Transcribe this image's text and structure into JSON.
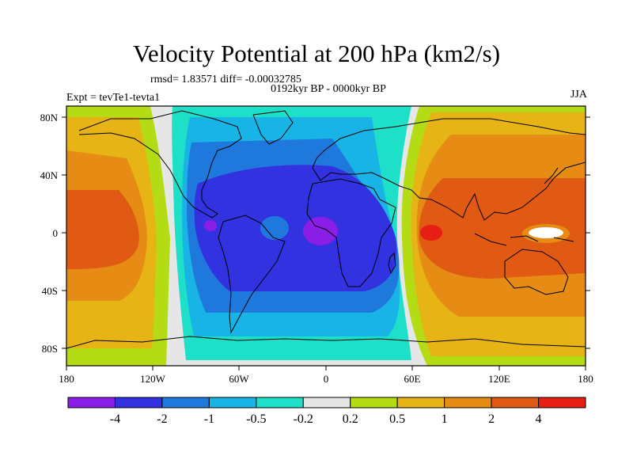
{
  "header": {
    "title": "Velocity Potential at 200 hPa (km2/s)",
    "rmsd": "rmsd= 1.83571 diff= -0.00032785",
    "period": "0192kyr BP - 0000kyr BP",
    "experiment": "Expt = tevTe1-tevta1",
    "season": "JJA"
  },
  "axes": {
    "lat_labels": [
      "80N",
      "40N",
      "0",
      "40S",
      "80S"
    ],
    "lon_labels": [
      "180",
      "120W",
      "60W",
      "0",
      "60E",
      "120E",
      "180"
    ]
  },
  "colorbar": {
    "colors": [
      "#8a1ee6",
      "#3232e0",
      "#1f78dc",
      "#18b4e6",
      "#1ee0c8",
      "#e6e6e6",
      "#b4dc14",
      "#e6b414",
      "#e68c14",
      "#e05a14",
      "#e61e14"
    ],
    "labels": [
      "-4",
      "-2",
      "-1",
      "-0.5",
      "-0.2",
      "0.2",
      "0.5",
      "1",
      "2",
      "4"
    ]
  },
  "field": {
    "variable": "velocity potential",
    "level": "200 hPa",
    "units": "km2/s",
    "negative_center": "Atlantic / Amazon (~60W-0, 0)",
    "positive_center": "Maritime Continent / Indian Ocean (~60E-180, 0)"
  }
}
